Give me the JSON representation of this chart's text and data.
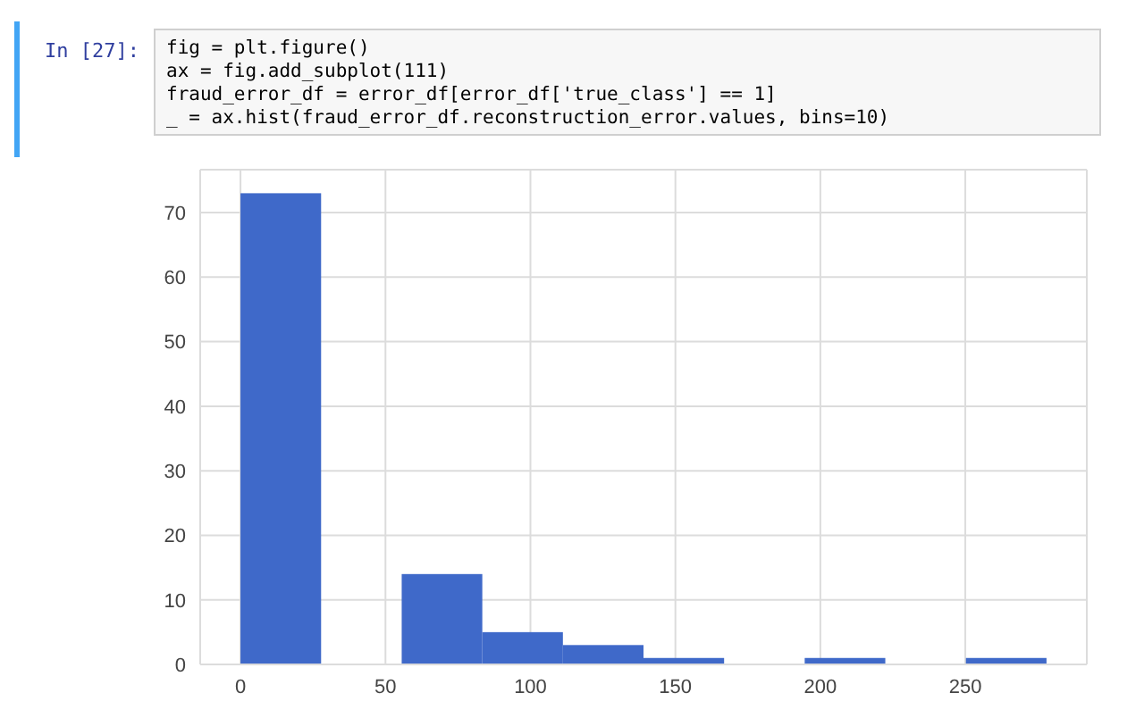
{
  "chart_data": {
    "type": "histogram",
    "annotations": [
      "In [27]:",
      "fig = plt.figure()",
      "ax = fig.add_subplot(111)",
      "fraud_error_df = error_df[error_df['true_class'] == 1]",
      "_ = ax.hist(fraud_error_df.reconstruction_error.values, bins=10)"
    ],
    "bins": [
      0,
      27.8,
      55.6,
      83.4,
      111.2,
      139,
      166.8,
      194.6,
      222.4,
      250.2,
      278
    ],
    "values": [
      73,
      0,
      14,
      5,
      3,
      1,
      0,
      1,
      0,
      1
    ],
    "color": "#3f69c9",
    "xlim": [
      -13.9,
      291.9
    ],
    "xticks": [
      0,
      50,
      100,
      150,
      200,
      250
    ],
    "ylim": [
      0,
      76.65
    ],
    "yticks": [
      0,
      10,
      20,
      30,
      40,
      50,
      60,
      70
    ],
    "grid": true
  }
}
